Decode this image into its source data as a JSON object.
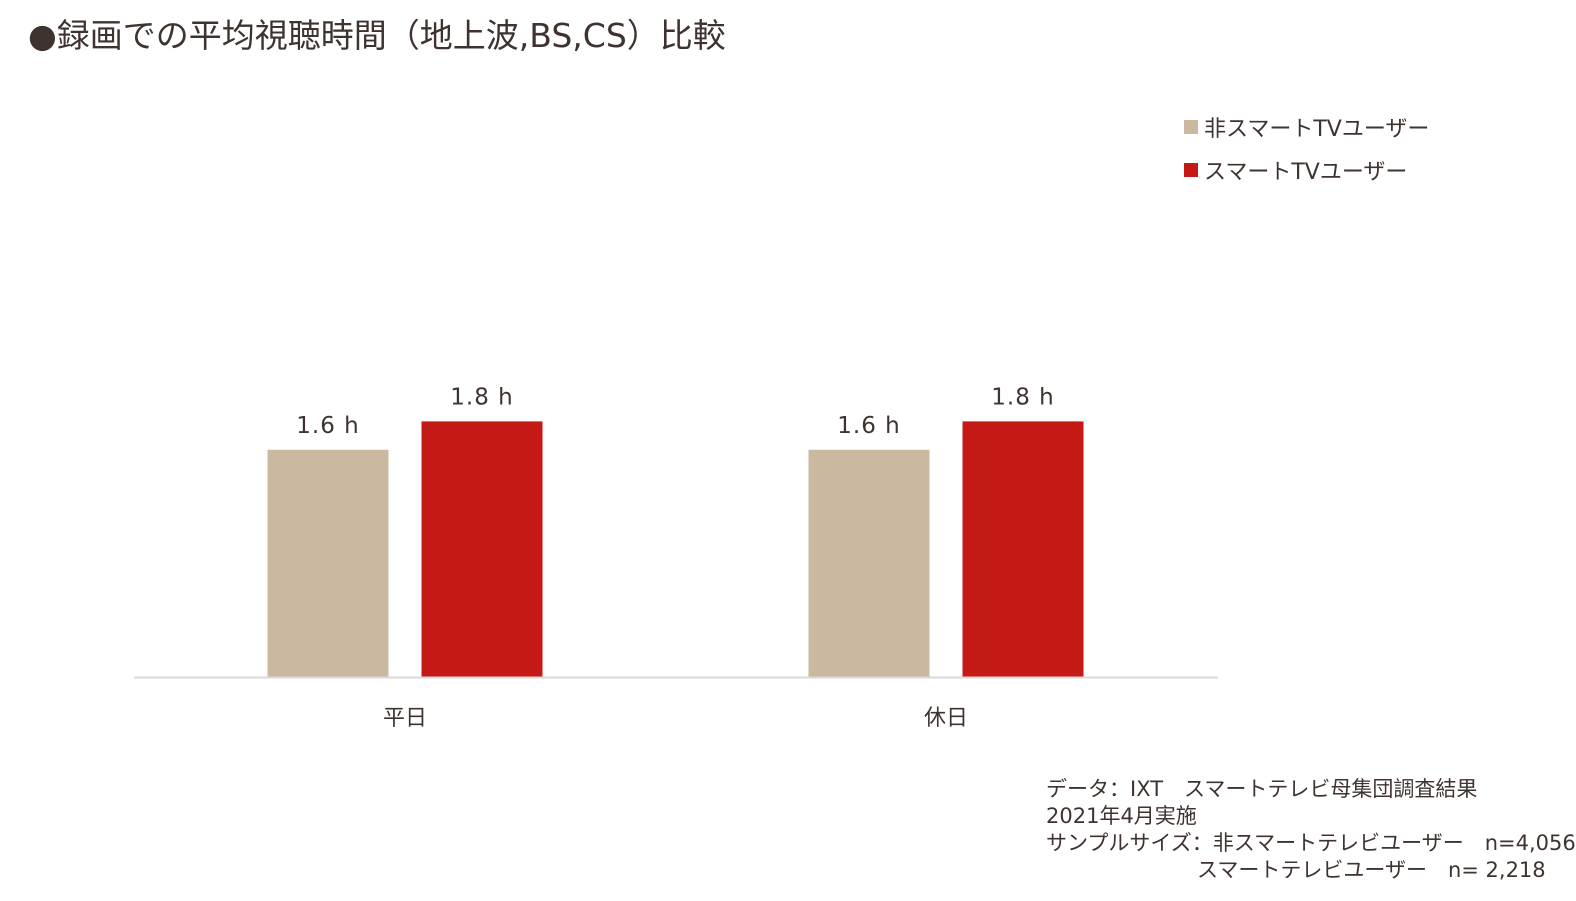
{
  "title": "●録画での平均視聴時間（地上波,BS,CS）比較",
  "chart_data": {
    "type": "bar",
    "title": "●録画での平均視聴時間（地上波,BS,CS）比較",
    "categories": [
      "平日",
      "休日"
    ],
    "series": [
      {
        "name": "非スマートTVユーザー",
        "values": [
          1.6,
          1.6
        ],
        "labels": [
          "1.6 h",
          "1.6 h"
        ],
        "color": "#cbb8a0"
      },
      {
        "name": "スマートTVユーザー",
        "values": [
          1.8,
          1.8
        ],
        "labels": [
          "1.8 h",
          "1.8 h"
        ],
        "color": "#c51916"
      }
    ],
    "ylim": [
      0,
      2
    ],
    "grid": false,
    "legend_placement": "top-right",
    "axis_color": "#d9d9d9"
  },
  "footnote": {
    "line1": "データ：IXT　スマートテレビ母集団調査結果",
    "line2": "2021年4月実施",
    "line3": "サンプルサイズ：非スマートテレビユーザー　n=4,056",
    "line4": "スマートテレビユーザー　n= 2,218"
  }
}
